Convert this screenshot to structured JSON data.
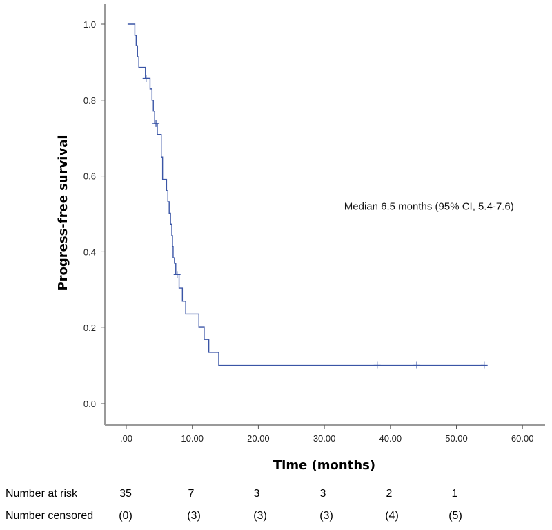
{
  "chart_data": {
    "type": "line",
    "subtype": "kaplan-meier",
    "title": "",
    "xlabel": "Time (months)",
    "ylabel": "Progress-free survival",
    "xlim": [
      0,
      60
    ],
    "ylim": [
      0,
      1
    ],
    "x_ticks": [
      0,
      10,
      20,
      30,
      40,
      50,
      60
    ],
    "x_tick_labels": [
      ".00",
      "10.00",
      "20.00",
      "30.00",
      "40.00",
      "50.00",
      "60.00"
    ],
    "y_ticks": [
      0,
      0.2,
      0.4,
      0.6,
      0.8,
      1.0
    ],
    "y_tick_labels": [
      "0.0",
      "0.2",
      "0.4",
      "0.6",
      "0.8",
      "1.0"
    ],
    "grid": false,
    "line_color": "#3a55a6",
    "series": [
      {
        "name": "Progress-free survival",
        "steps": [
          [
            0.2,
            1.0
          ],
          [
            1.3,
            0.971
          ],
          [
            1.5,
            0.943
          ],
          [
            1.7,
            0.914
          ],
          [
            1.9,
            0.886
          ],
          [
            2.9,
            0.857
          ],
          [
            3.6,
            0.829
          ],
          [
            3.9,
            0.8
          ],
          [
            4.1,
            0.771
          ],
          [
            4.3,
            0.738
          ],
          [
            4.7,
            0.709
          ],
          [
            5.3,
            0.65
          ],
          [
            5.5,
            0.591
          ],
          [
            6.1,
            0.561
          ],
          [
            6.3,
            0.532
          ],
          [
            6.5,
            0.502
          ],
          [
            6.7,
            0.473
          ],
          [
            6.9,
            0.443
          ],
          [
            7.0,
            0.414
          ],
          [
            7.1,
            0.384
          ],
          [
            7.3,
            0.37
          ],
          [
            7.5,
            0.34
          ],
          [
            8.0,
            0.304
          ],
          [
            8.5,
            0.27
          ],
          [
            9.0,
            0.236
          ],
          [
            11.0,
            0.202
          ],
          [
            11.8,
            0.169
          ],
          [
            12.5,
            0.135
          ],
          [
            14.0,
            0.101
          ]
        ],
        "end_x": 54.2,
        "censored": [
          [
            3.0,
            0.857
          ],
          [
            4.5,
            0.738
          ],
          [
            7.7,
            0.34
          ],
          [
            38.0,
            0.101
          ],
          [
            44.0,
            0.101
          ],
          [
            54.2,
            0.101
          ]
        ]
      }
    ],
    "annotations": [
      {
        "text": "Median 6.5 months (95% CI, 5.4-7.6)",
        "x": 33,
        "y": 0.52
      }
    ]
  },
  "risk_table": {
    "at_risk_label": "Number at risk",
    "censored_label": "Number censored",
    "times": [
      0,
      10,
      20,
      30,
      40,
      50
    ],
    "at_risk": [
      "35",
      "7",
      "3",
      "3",
      "2",
      "1"
    ],
    "censored": [
      "(0)",
      "(3)",
      "(3)",
      "(3)",
      "(4)",
      "(5)"
    ]
  }
}
